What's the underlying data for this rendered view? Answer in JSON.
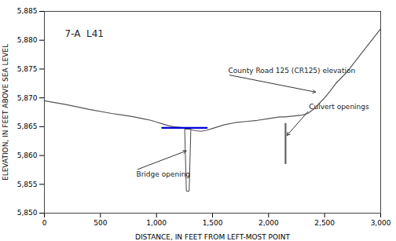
{
  "chart_data": {
    "type": "line",
    "title": "7-A  L41",
    "xlabel": "DISTANCE, IN FEET FROM LEFT-MOST POINT",
    "ylabel": "ELEVATION, IN FEET ABOVE SEA LEVEL",
    "xlim": [
      0,
      3000
    ],
    "ylim": [
      5850,
      5885
    ],
    "xticks": [
      0,
      500,
      {
        "value": 1000,
        "label": "1,000"
      },
      {
        "value": 1500,
        "label": "1,500"
      },
      {
        "value": 2000,
        "label": "2,000"
      },
      {
        "value": 2500,
        "label": "2,500"
      },
      {
        "value": 3000,
        "label": "3,000"
      }
    ],
    "yticks": [
      {
        "value": 5850,
        "label": "5,850"
      },
      {
        "value": 5855,
        "label": "5,855"
      },
      {
        "value": 5860,
        "label": "5,860"
      },
      {
        "value": 5865,
        "label": "5,865"
      },
      {
        "value": 5870,
        "label": "5,870"
      },
      {
        "value": 5875,
        "label": "5,875"
      },
      {
        "value": 5880,
        "label": "5,880"
      },
      {
        "value": 5885,
        "label": "5,885"
      }
    ],
    "grid": false,
    "series": [
      {
        "color": "#555555",
        "x": [
          0,
          200,
          400,
          600,
          700,
          800,
          900,
          950,
          1000,
          1050,
          1100,
          1150,
          1200,
          1250,
          1300,
          1350,
          1400,
          1450,
          1500,
          1550,
          1600,
          1700,
          1800,
          1900,
          2000,
          2100,
          2150,
          2200,
          2250,
          2300,
          2350,
          2400,
          2450,
          2500,
          2550,
          2600,
          2700,
          2800,
          2900,
          3000
        ],
        "values": [
          5869.5,
          5868.8,
          5868.0,
          5867.3,
          5867.0,
          5866.7,
          5866.3,
          5866.1,
          5865.8,
          5865.5,
          5865.2,
          5865.0,
          5864.9,
          5864.8,
          5864.5,
          5864.3,
          5864.2,
          5864.4,
          5864.7,
          5865.0,
          5865.3,
          5865.7,
          5865.9,
          5866.1,
          5866.4,
          5866.7,
          5866.7,
          5866.8,
          5866.9,
          5867.0,
          5867.3,
          5868.0,
          5869.0,
          5870.0,
          5871.2,
          5872.5,
          5874.5,
          5877.0,
          5879.5,
          5882.0
        ]
      },
      {
        "color": "#0000dd",
        "x": [
          1050,
          1450
        ],
        "values": [
          5864.8,
          5864.8
        ]
      }
    ],
    "bridge_opening": {
      "color": "#ffffff",
      "y": [
        5853.8,
        5864.5
      ],
      "x_left": [
        1270,
        1255
      ],
      "x_right": [
        1295,
        1310
      ]
    },
    "culvert": {
      "color": "#888888",
      "x1": 2151,
      "x2": 2159,
      "y1": 5858.5,
      "y2": 5865.5
    },
    "annotations": [
      {
        "text": "County Road 125 (CR125) elevation",
        "x": 1640,
        "y": 5874.0,
        "arrow_x": 2420,
        "arrow_y": 5871.0
      },
      {
        "text": "Bridge opening",
        "x": 820,
        "y": 5857.5,
        "arrow_x": 1265,
        "arrow_y": 5860.8
      },
      {
        "text": "Culvert openings",
        "x": 2360,
        "y": 5867.8,
        "arrow_x": 2165,
        "arrow_y": 5863.5
      }
    ]
  }
}
